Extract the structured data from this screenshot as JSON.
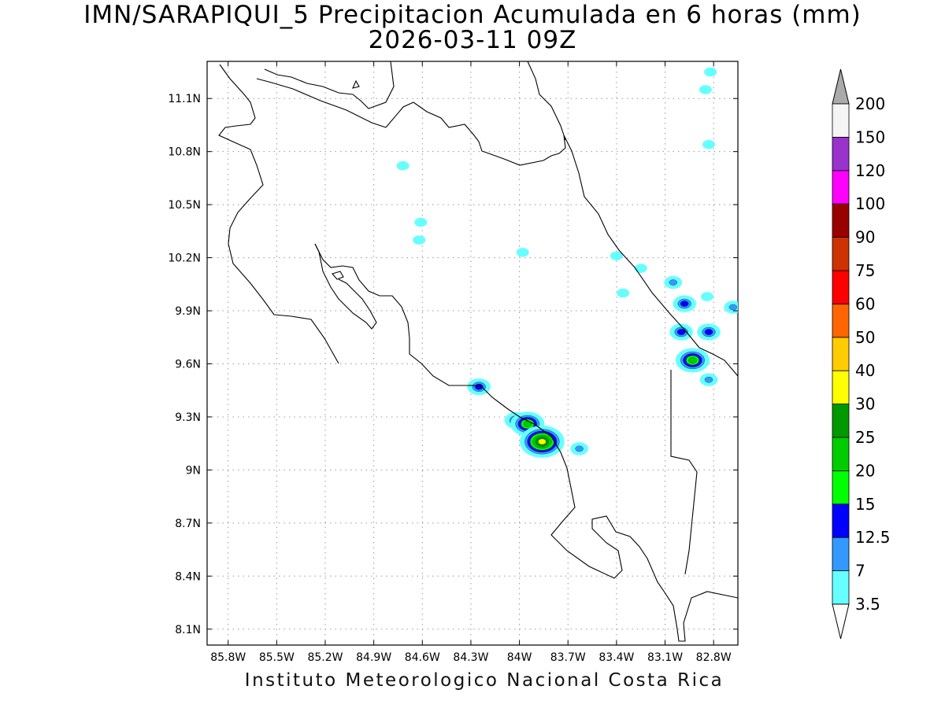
{
  "title": "IMN/SARAPIQUI_5 Precipitacion Acumulada en 6 horas (mm)",
  "subtitle": "2026-03-11 09Z",
  "footer": "Instituto Meteorologico Nacional Costa Rica",
  "map": {
    "lon_range": [
      -85.93,
      -82.65
    ],
    "lat_range": [
      8.01,
      11.31
    ],
    "lon_ticks": [
      "85.8W",
      "85.5W",
      "85.2W",
      "84.9W",
      "84.6W",
      "84.3W",
      "84W",
      "83.7W",
      "83.4W",
      "83.1W",
      "82.8W"
    ],
    "lat_ticks": [
      "11.1N",
      "10.8N",
      "10.5N",
      "10.2N",
      "9.9N",
      "9.6N",
      "9.3N",
      "9N",
      "8.7N",
      "8.4N",
      "8.1N"
    ],
    "grid": "dotted"
  },
  "colorbar": {
    "labels": [
      "3.5",
      "7",
      "12.5",
      "15",
      "20",
      "25",
      "30",
      "40",
      "50",
      "60",
      "75",
      "90",
      "100",
      "120",
      "150",
      "200"
    ],
    "colors": [
      "#ffffff",
      "#66ffff",
      "#3399ff",
      "#0000ff",
      "#00ff00",
      "#00cc00",
      "#009900",
      "#ffff00",
      "#ffcc00",
      "#ff6600",
      "#ff0000",
      "#cc3300",
      "#990000",
      "#ff00ff",
      "#9933cc",
      "#f5f5f5",
      "#aaaaaa"
    ]
  },
  "precip_cells": [
    {
      "lon": -82.82,
      "lat": 11.25,
      "level": 1
    },
    {
      "lon": -82.85,
      "lat": 11.15,
      "level": 1
    },
    {
      "lon": -82.83,
      "lat": 10.84,
      "level": 1
    },
    {
      "lon": -84.72,
      "lat": 10.72,
      "level": 1
    },
    {
      "lon": -84.61,
      "lat": 10.4,
      "level": 1
    },
    {
      "lon": -84.62,
      "lat": 10.3,
      "level": 1
    },
    {
      "lon": -83.98,
      "lat": 10.23,
      "level": 1
    },
    {
      "lon": -83.4,
      "lat": 10.21,
      "level": 1
    },
    {
      "lon": -83.25,
      "lat": 10.14,
      "level": 1
    },
    {
      "lon": -83.36,
      "lat": 10.0,
      "level": 1
    },
    {
      "lon": -83.05,
      "lat": 10.06,
      "level": 2
    },
    {
      "lon": -82.98,
      "lat": 9.94,
      "level": 3
    },
    {
      "lon": -82.84,
      "lat": 9.98,
      "level": 1
    },
    {
      "lon": -82.68,
      "lat": 9.92,
      "level": 2
    },
    {
      "lon": -83.0,
      "lat": 9.78,
      "level": 3
    },
    {
      "lon": -82.83,
      "lat": 9.78,
      "level": 3
    },
    {
      "lon": -82.93,
      "lat": 9.62,
      "level": 5
    },
    {
      "lon": -82.83,
      "lat": 9.51,
      "level": 2
    },
    {
      "lon": -84.25,
      "lat": 9.47,
      "level": 3
    },
    {
      "lon": -84.02,
      "lat": 9.28,
      "level": 3
    },
    {
      "lon": -83.95,
      "lat": 9.26,
      "level": 5
    },
    {
      "lon": -83.86,
      "lat": 9.16,
      "level": 7
    },
    {
      "lon": -83.63,
      "lat": 9.12,
      "level": 2
    }
  ]
}
